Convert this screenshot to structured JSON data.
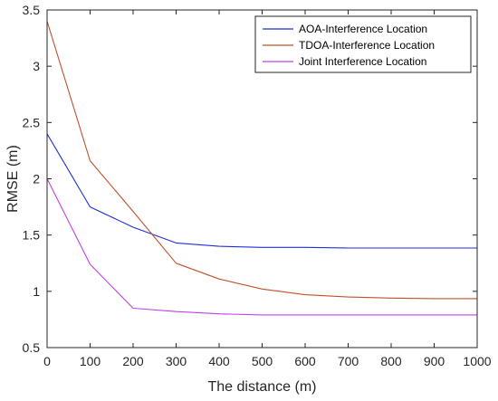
{
  "chart_data": {
    "type": "line",
    "title": "",
    "xlabel": "The distance (m)",
    "ylabel": "RMSE (m)",
    "xlim": [
      0,
      1000
    ],
    "ylim": [
      0.5,
      3.5
    ],
    "xticks": [
      0,
      100,
      200,
      300,
      400,
      500,
      600,
      700,
      800,
      900,
      1000
    ],
    "yticks": [
      0.5,
      1,
      1.5,
      2,
      2.5,
      3,
      3.5
    ],
    "ytick_labels": [
      "0.5",
      "1",
      "1.5",
      "2",
      "2.5",
      "3",
      "3.5"
    ],
    "grid": false,
    "legend_position": "top-right",
    "x": [
      0,
      100,
      200,
      300,
      400,
      500,
      600,
      700,
      800,
      900,
      1000
    ],
    "series": [
      {
        "name": "AOA-Interference Location",
        "color": "#1f2fd8",
        "values": [
          2.4,
          1.75,
          1.57,
          1.43,
          1.4,
          1.39,
          1.39,
          1.385,
          1.385,
          1.385,
          1.385
        ]
      },
      {
        "name": "TDOA-Interference Location",
        "color": "#c0502a",
        "values": [
          3.4,
          2.16,
          1.71,
          1.25,
          1.11,
          1.02,
          0.97,
          0.95,
          0.94,
          0.935,
          0.935
        ]
      },
      {
        "name": "Joint Interference Location",
        "color": "#c040e8",
        "values": [
          2.0,
          1.24,
          0.85,
          0.82,
          0.8,
          0.79,
          0.79,
          0.79,
          0.79,
          0.79,
          0.79
        ]
      }
    ]
  }
}
